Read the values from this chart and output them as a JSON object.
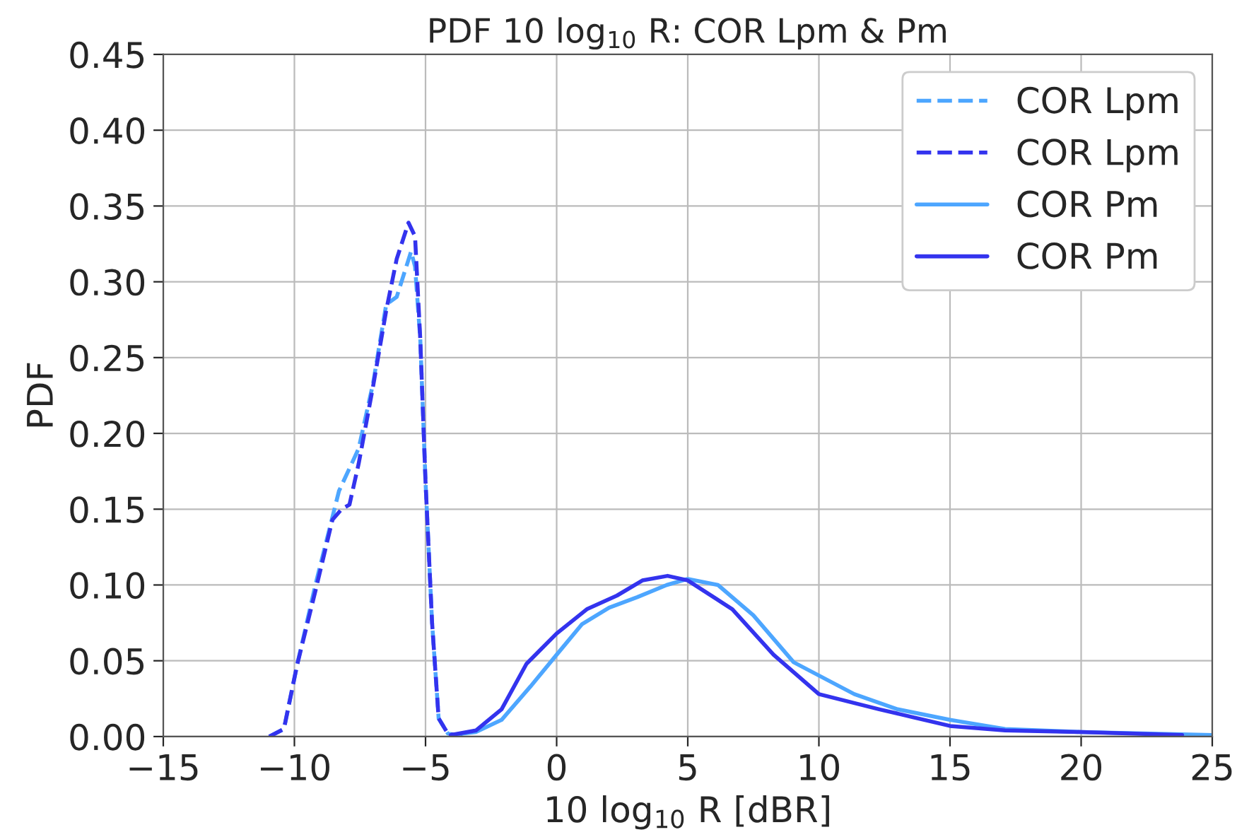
{
  "chart_data": {
    "type": "line",
    "title": "PDF 10 log$_{10}$ R: COR Lpm & Pm",
    "xlabel": "10 log$_{10}$ R [dBR]",
    "ylabel": "PDF",
    "xlim": [
      -15,
      25
    ],
    "xticks": [
      {
        "value": -15,
        "label": "−15"
      },
      {
        "value": -10,
        "label": "−10"
      },
      {
        "value": -5,
        "label": "−5"
      },
      0,
      5,
      10,
      15,
      20,
      25
    ],
    "ylim": [
      0,
      0.45
    ],
    "yticks": [
      {
        "value": 0,
        "label": "0.00"
      },
      {
        "value": 0.05,
        "label": "0.05"
      },
      {
        "value": 0.1,
        "label": "0.10"
      },
      {
        "value": 0.15,
        "label": "0.15"
      },
      {
        "value": 0.2,
        "label": "0.20"
      },
      {
        "value": 0.25,
        "label": "0.25"
      },
      {
        "value": 0.3,
        "label": "0.30"
      },
      {
        "value": 0.35,
        "label": "0.35"
      },
      {
        "value": 0.4,
        "label": "0.40"
      },
      {
        "value": 0.45,
        "label": "0.45"
      }
    ],
    "grid": true,
    "legend": "top right",
    "marker": "none",
    "series": [
      {
        "name": "COR Lpm",
        "color": "#4da6ff",
        "line_style": "dashed",
        "x": [
          -10.96,
          -10.4,
          -9.9,
          -9.2,
          -8.3,
          -7.55,
          -7.0,
          -6.5,
          -6.1,
          -5.55,
          -5.4,
          -5.2,
          -5.0,
          -4.75,
          -4.5,
          -4.15,
          -3.6
        ],
        "values": [
          0,
          0.005,
          0.047,
          0.1,
          0.162,
          0.19,
          0.233,
          0.285,
          0.29,
          0.32,
          0.31,
          0.262,
          0.168,
          0.075,
          0.012,
          0.002,
          0
        ]
      },
      {
        "name": "COR Lpm",
        "color": "#3333ee",
        "line_style": "dashed",
        "x": [
          -10.96,
          -10.4,
          -9.9,
          -9.2,
          -8.55,
          -8.2,
          -7.9,
          -7.55,
          -7.0,
          -6.5,
          -6.1,
          -5.65,
          -5.4,
          -5.2,
          -5.0,
          -4.75,
          -4.5,
          -4.15,
          -3.6
        ],
        "values": [
          0,
          0.005,
          0.047,
          0.096,
          0.143,
          0.15,
          0.153,
          0.18,
          0.231,
          0.281,
          0.315,
          0.339,
          0.33,
          0.262,
          0.168,
          0.075,
          0.012,
          0.002,
          0
        ]
      },
      {
        "name": "COR Pm",
        "color": "#4da6ff",
        "line_style": "solid",
        "x": [
          -4.04,
          -3.08,
          -2.1,
          -1.0,
          0,
          0.96,
          2.0,
          3.08,
          4.2,
          5,
          6.15,
          7.5,
          9.04,
          11.35,
          13.0,
          15,
          17.1,
          20,
          25
        ],
        "values": [
          0.001,
          0.003,
          0.011,
          0.033,
          0.054,
          0.074,
          0.085,
          0.092,
          0.1,
          0.104,
          0.1,
          0.08,
          0.049,
          0.028,
          0.018,
          0.011,
          0.005,
          0.003,
          0.001
        ]
      },
      {
        "name": "COR Pm",
        "color": "#3333ee",
        "line_style": "solid",
        "x": [
          -4.04,
          -3.08,
          -2.1,
          -1.15,
          0,
          1.15,
          2.3,
          3.27,
          4.23,
          5,
          6.7,
          8.27,
          10,
          12.3,
          15,
          17.1,
          20,
          23.85
        ],
        "values": [
          0.001,
          0.004,
          0.018,
          0.048,
          0.068,
          0.084,
          0.093,
          0.103,
          0.106,
          0.103,
          0.084,
          0.054,
          0.028,
          0.018,
          0.007,
          0.004,
          0.003,
          0.001
        ]
      }
    ]
  }
}
